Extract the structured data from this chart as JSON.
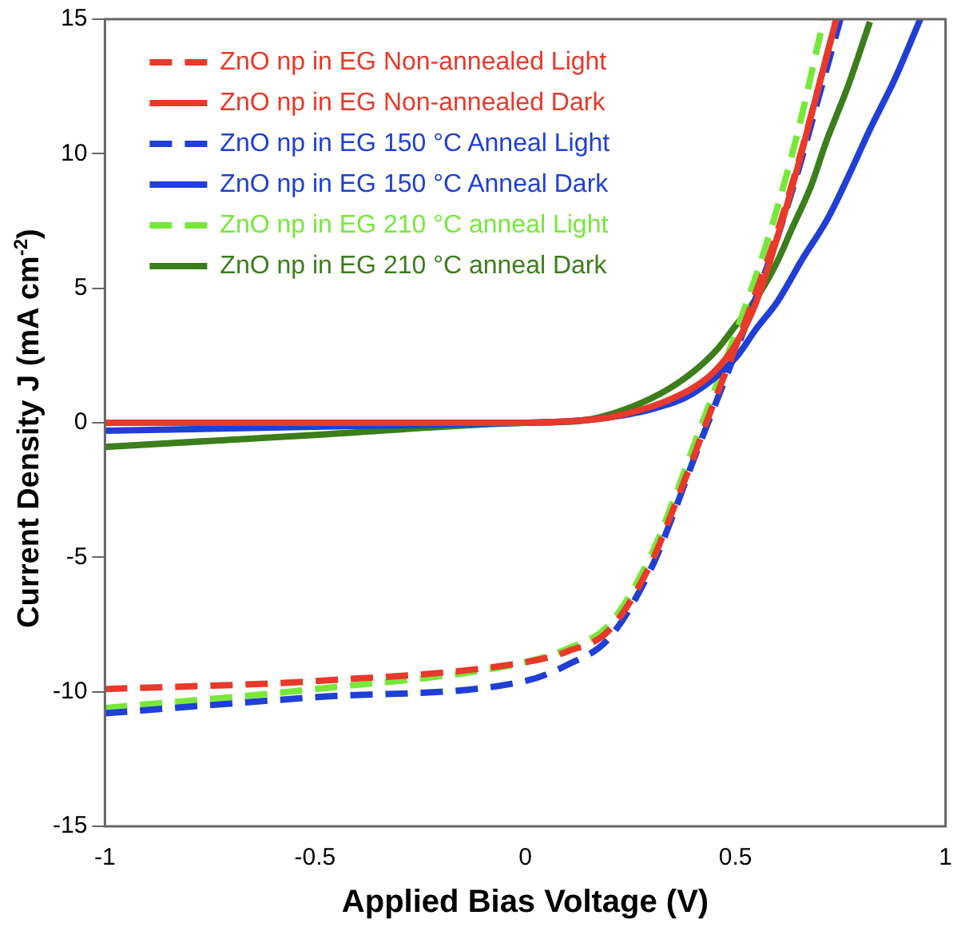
{
  "chart_data": {
    "type": "line",
    "xlabel": "Applied Bias Voltage (V)",
    "ylabel": "Current Density J (mA cm$^{-2}$)",
    "xlim": [
      -1,
      1
    ],
    "xticks": [
      -1,
      -0.5,
      0,
      0.5,
      1
    ],
    "ylim": [
      -15,
      15
    ],
    "yticks": [
      -15,
      -10,
      -5,
      0,
      5,
      10,
      15
    ],
    "grid": false,
    "legend": "top left",
    "marker": "none",
    "series": [
      {
        "name": "ZnO np in EG Non-annealed Light",
        "color": "#e8392a",
        "line_style": "dashed",
        "x": [
          -1,
          -0.5,
          0,
          0.1,
          0.2,
          0.3,
          0.35,
          0.4,
          0.45,
          0.5,
          0.55,
          0.6,
          0.65,
          0.7,
          0.74
        ],
        "values": [
          -9.9,
          -9.6,
          -8.9,
          -8.5,
          -7.7,
          -5.2,
          -3.3,
          -1.3,
          0.8,
          2.8,
          4.9,
          7.1,
          9.7,
          12.6,
          15
        ]
      },
      {
        "name": "ZnO np in EG Non-annealed Dark",
        "color": "#e8392a",
        "line_style": "solid",
        "x": [
          -1,
          -0.5,
          0,
          0.1,
          0.2,
          0.3,
          0.35,
          0.4,
          0.45,
          0.5,
          0.55,
          0.6,
          0.65,
          0.7,
          0.74
        ],
        "values": [
          0,
          0,
          0,
          0.05,
          0.2,
          0.6,
          0.9,
          1.3,
          1.9,
          2.9,
          4.5,
          6.9,
          9.6,
          12.6,
          15
        ]
      },
      {
        "name": "ZnO np in EG 150 °C Anneal Light",
        "color": "#1f3fd6",
        "line_style": "dashed",
        "x": [
          -1,
          -0.5,
          0,
          0.1,
          0.2,
          0.3,
          0.35,
          0.4,
          0.45,
          0.5,
          0.55,
          0.6,
          0.65,
          0.7,
          0.75
        ],
        "values": [
          -10.8,
          -10.2,
          -9.6,
          -9.0,
          -8.0,
          -5.4,
          -3.5,
          -1.4,
          0.6,
          2.6,
          4.7,
          6.9,
          9.4,
          12.2,
          15
        ]
      },
      {
        "name": "ZnO np in EG 150 °C Anneal Dark",
        "color": "#1f3fd6",
        "line_style": "solid",
        "x": [
          -1,
          -0.5,
          0,
          0.1,
          0.2,
          0.3,
          0.4,
          0.5,
          0.55,
          0.6,
          0.66,
          0.72,
          0.77,
          0.82,
          0.88,
          0.94
        ],
        "values": [
          -0.3,
          -0.15,
          0,
          0.05,
          0.2,
          0.5,
          1.1,
          2.4,
          3.5,
          4.5,
          6.1,
          7.6,
          9.2,
          10.9,
          12.8,
          15
        ]
      },
      {
        "name": "ZnO np in EG 210 °C anneal Light",
        "color": "#77e83a",
        "line_style": "dashed",
        "x": [
          -1,
          -0.5,
          0,
          0.1,
          0.2,
          0.3,
          0.35,
          0.4,
          0.45,
          0.5,
          0.55,
          0.6,
          0.65,
          0.71
        ],
        "values": [
          -10.6,
          -9.9,
          -8.9,
          -8.4,
          -7.5,
          -4.9,
          -3.0,
          -0.9,
          1.2,
          3.3,
          5.5,
          8.0,
          10.9,
          15
        ]
      },
      {
        "name": "ZnO np in EG 210 °C anneal Dark",
        "color": "#3c7d1c",
        "line_style": "solid",
        "x": [
          -1,
          -0.5,
          0,
          0.12,
          0.2,
          0.32,
          0.4,
          0.455,
          0.5,
          0.553,
          0.6,
          0.634,
          0.68,
          0.715,
          0.77,
          0.82
        ],
        "values": [
          -0.9,
          -0.45,
          0,
          0.05,
          0.3,
          1.07,
          1.9,
          2.7,
          3.6,
          4.7,
          6.0,
          7.2,
          8.8,
          10.4,
          12.6,
          14.9
        ]
      }
    ]
  }
}
